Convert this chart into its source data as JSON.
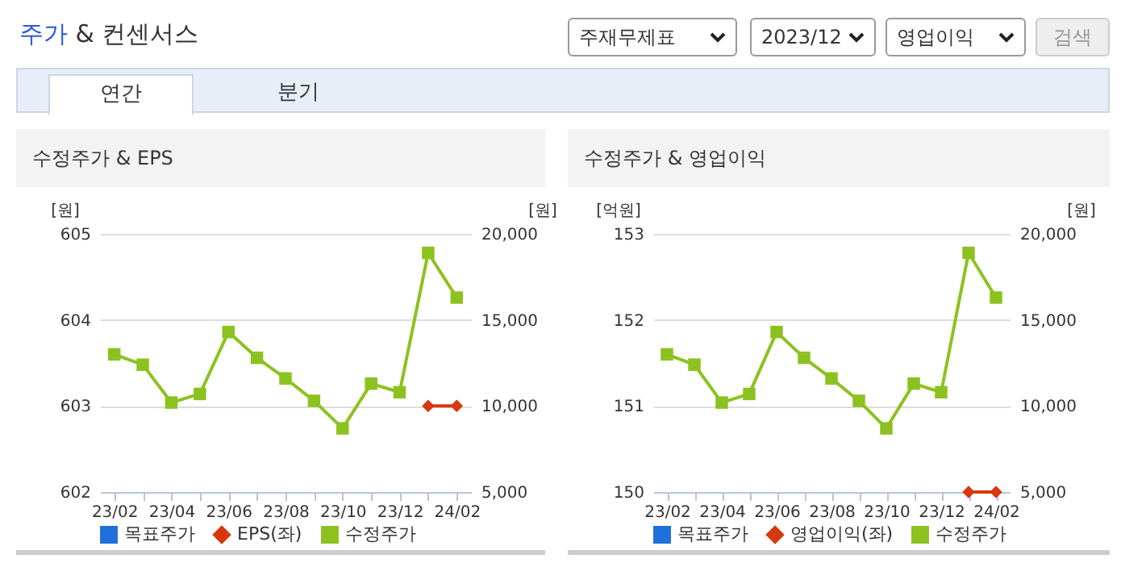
{
  "chart_data": [
    {
      "type": "other",
      "title": "주가 & 컨센서스",
      "annotations": [
        "주재무제표",
        "2023/12",
        "영업이익",
        "검색",
        "연간",
        "분기"
      ]
    },
    {
      "type": "line",
      "title": "수정주가 & EPS",
      "ylabel": "[원]",
      "y2label": "[원]",
      "categories": [
        "23/02",
        null,
        "23/04",
        null,
        "23/06",
        null,
        "23/08",
        null,
        "23/10",
        null,
        "23/12",
        null,
        "24/02"
      ],
      "ylim": [
        602,
        605
      ],
      "yticks": [
        602,
        603,
        604,
        605
      ],
      "y2lim": [
        5000,
        20000
      ],
      "y2ticks": [
        {
          "value": 5000,
          "label": "5,000"
        },
        {
          "value": 10000,
          "label": "10,000"
        },
        {
          "value": 15000,
          "label": "15,000"
        },
        {
          "value": 20000,
          "label": "20,000"
        }
      ],
      "grid": "y",
      "legend": "bottom",
      "series": [
        {
          "name": "목표주가",
          "color": "#1f6fdc",
          "marker": "square",
          "values": [
            null,
            null,
            null,
            null,
            null,
            null,
            null,
            null,
            null,
            null,
            null,
            null,
            null
          ]
        },
        {
          "name": "EPS(좌)",
          "color": "#d7380f",
          "marker": "diamond",
          "values": [
            null,
            null,
            null,
            null,
            null,
            null,
            null,
            null,
            null,
            null,
            null,
            603,
            603
          ]
        },
        {
          "name": "수정주가",
          "color": "#8cc21f",
          "marker": "square",
          "axis": "y2",
          "values": [
            13000,
            12400,
            10200,
            10700,
            14300,
            12800,
            11600,
            10300,
            8700,
            11300,
            10800,
            18900,
            16300
          ]
        }
      ]
    },
    {
      "type": "line",
      "title": "수정주가 & 영업이익",
      "ylabel": "[억원]",
      "y2label": "[원]",
      "categories": [
        "23/02",
        null,
        "23/04",
        null,
        "23/06",
        null,
        "23/08",
        null,
        "23/10",
        null,
        "23/12",
        null,
        "24/02"
      ],
      "ylim": [
        150,
        153
      ],
      "yticks": [
        150,
        151,
        152,
        153
      ],
      "y2lim": [
        5000,
        20000
      ],
      "y2ticks": [
        {
          "value": 5000,
          "label": "5,000"
        },
        {
          "value": 10000,
          "label": "10,000"
        },
        {
          "value": 15000,
          "label": "15,000"
        },
        {
          "value": 20000,
          "label": "20,000"
        }
      ],
      "grid": "y",
      "legend": "bottom",
      "series": [
        {
          "name": "목표주가",
          "color": "#1f6fdc",
          "marker": "square",
          "values": [
            null,
            null,
            null,
            null,
            null,
            null,
            null,
            null,
            null,
            null,
            null,
            null,
            null
          ]
        },
        {
          "name": "영업이익(좌)",
          "color": "#d7380f",
          "marker": "diamond",
          "values": [
            null,
            null,
            null,
            null,
            null,
            null,
            null,
            null,
            null,
            null,
            null,
            150,
            150
          ]
        },
        {
          "name": "수정주가",
          "color": "#8cc21f",
          "marker": "square",
          "axis": "y2",
          "values": [
            13000,
            12400,
            10200,
            10700,
            14300,
            12800,
            11600,
            10300,
            8700,
            11300,
            10800,
            18900,
            16300
          ]
        }
      ]
    }
  ]
}
